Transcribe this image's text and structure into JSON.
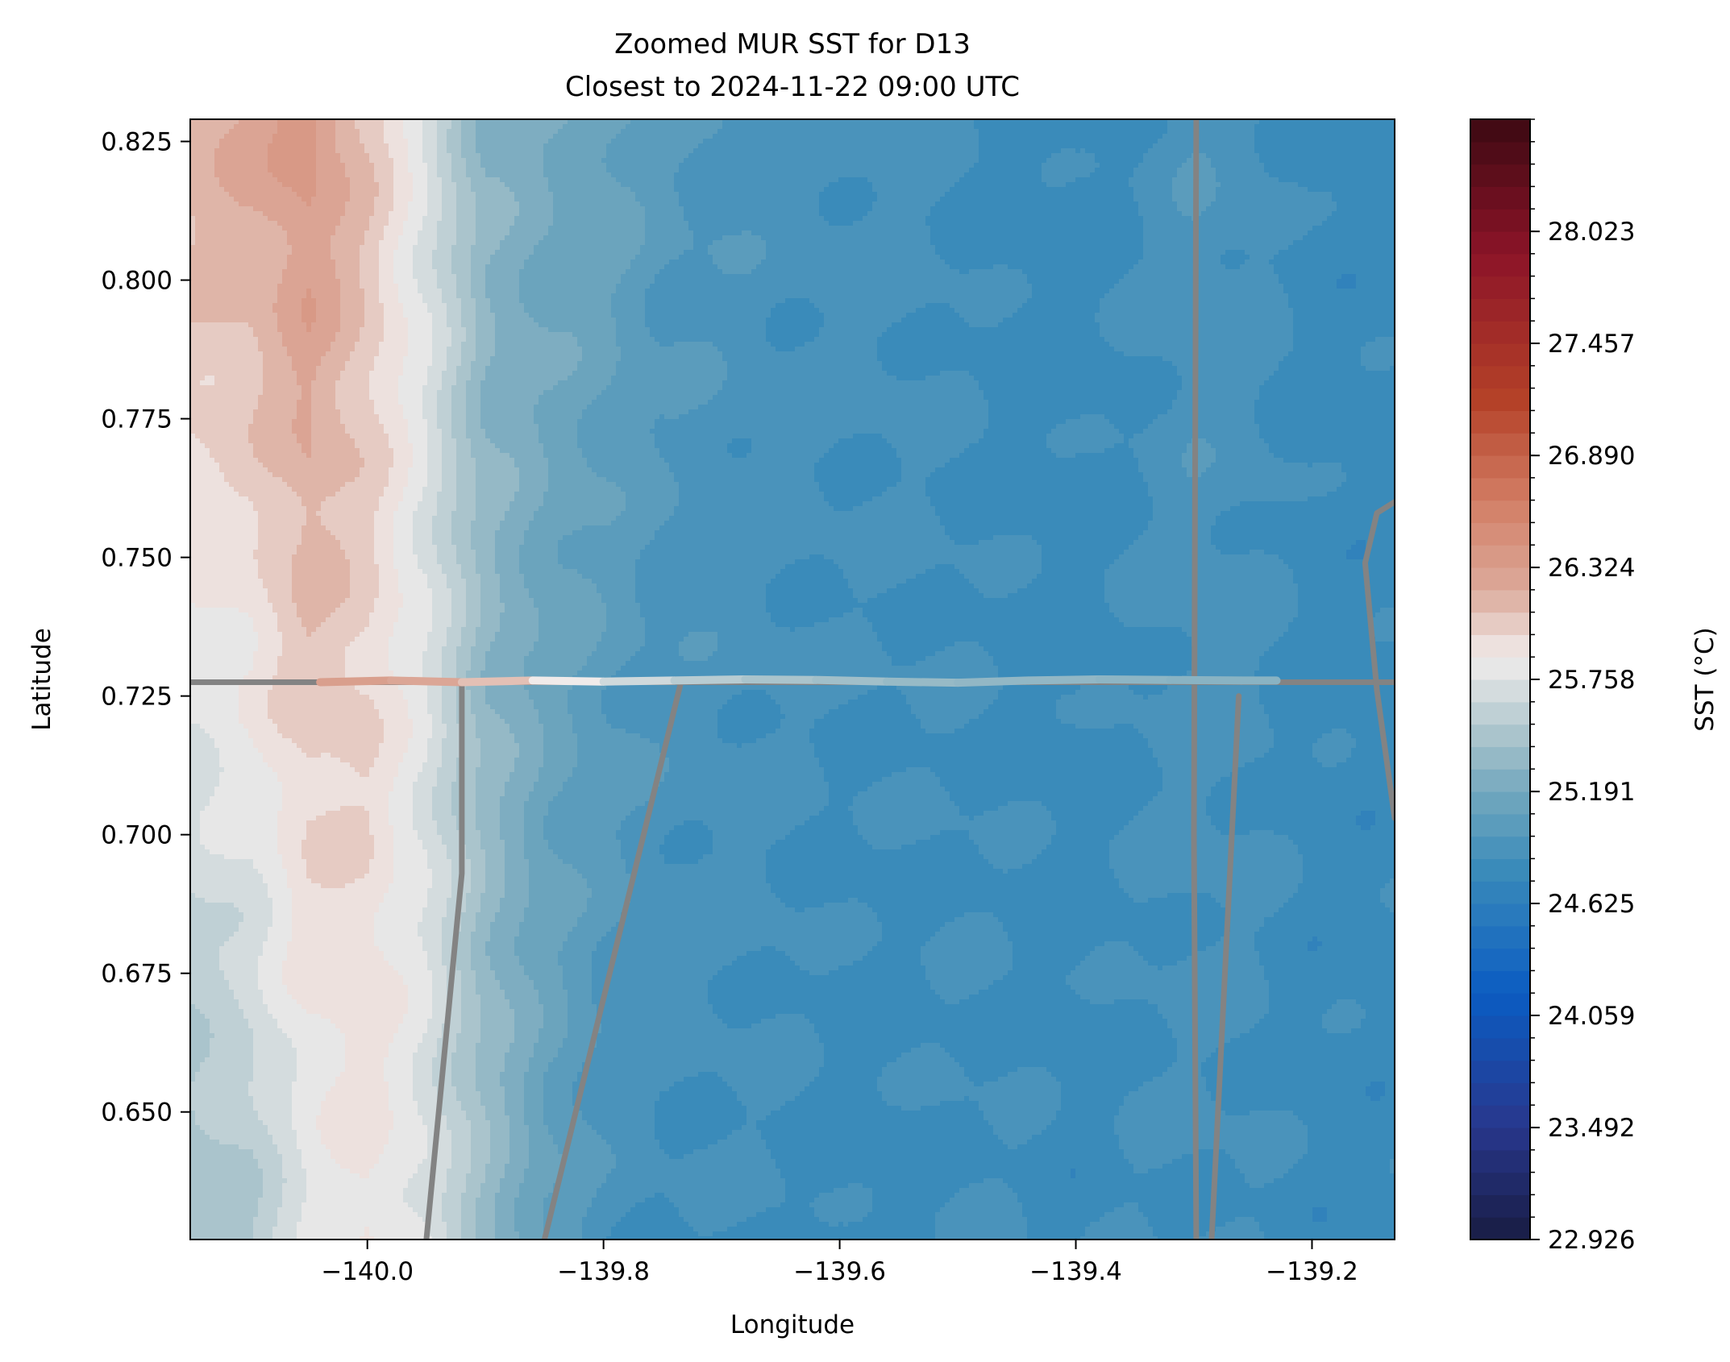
{
  "chart_data": {
    "type": "heatmap",
    "title": "Zoomed MUR SST for D13",
    "subtitle": "Closest to 2024-11-22 09:00 UTC",
    "xlabel": "Longitude",
    "ylabel": "Latitude",
    "xlim": [
      -140.15,
      -139.13
    ],
    "ylim": [
      0.627,
      0.829
    ],
    "x_ticks": [
      -140.0,
      -139.8,
      -139.6,
      -139.4,
      -139.2
    ],
    "x_tick_labels": [
      "−140.0",
      "−139.8",
      "−139.6",
      "−139.4",
      "−139.2"
    ],
    "y_ticks": [
      0.65,
      0.675,
      0.7,
      0.725,
      0.75,
      0.775,
      0.8,
      0.825
    ],
    "y_tick_labels": [
      "0.650",
      "0.675",
      "0.700",
      "0.725",
      "0.750",
      "0.775",
      "0.800",
      "0.825"
    ],
    "colorbar": {
      "label": "SST (°C)",
      "range": [
        22.926,
        28.59
      ],
      "ticks": [
        22.926,
        23.492,
        24.059,
        24.625,
        25.191,
        25.758,
        26.324,
        26.89,
        27.457,
        28.023
      ],
      "tick_labels": [
        "22.926",
        "23.492",
        "24.059",
        "24.625",
        "25.191",
        "25.758",
        "26.324",
        "26.890",
        "27.457",
        "28.023"
      ],
      "levels": 50,
      "colormap": "balance (dark blue → white → dark red)"
    },
    "sst_field_profile": {
      "longitude": [
        -140.15,
        -140.1,
        -140.05,
        -140.0,
        -139.95,
        -139.9,
        -139.85,
        -139.8,
        -139.75,
        -139.7,
        -139.65,
        -139.6,
        -139.55,
        -139.5,
        -139.45,
        -139.4,
        -139.35,
        -139.3,
        -139.25,
        -139.2,
        -139.15
      ],
      "sst_north": [
        26.2,
        26.25,
        26.4,
        26.1,
        25.75,
        25.3,
        25.2,
        25.15,
        25.0,
        24.95,
        24.9,
        24.9,
        24.9,
        24.85,
        24.8,
        24.8,
        24.85,
        24.95,
        24.9,
        24.8,
        24.8
      ],
      "sst_south": [
        25.4,
        25.5,
        25.75,
        25.9,
        25.75,
        25.4,
        25.1,
        24.9,
        24.85,
        24.85,
        24.85,
        24.8,
        24.8,
        24.85,
        24.85,
        24.8,
        24.85,
        24.85,
        24.85,
        24.8,
        24.8
      ]
    },
    "drifter_track": {
      "longitude": [
        -140.04,
        -139.98,
        -139.92,
        -139.86,
        -139.8,
        -139.74,
        -139.68,
        -139.62,
        -139.56,
        -139.5,
        -139.44,
        -139.38,
        -139.32,
        -139.26,
        -139.23
      ],
      "latitude": [
        0.7275,
        0.7278,
        0.7275,
        0.7278,
        0.7276,
        0.7278,
        0.728,
        0.7279,
        0.7276,
        0.7274,
        0.7278,
        0.728,
        0.7279,
        0.7278,
        0.7278
      ],
      "sst": [
        26.35,
        26.3,
        26.2,
        26.0,
        25.75,
        25.6,
        25.5,
        25.45,
        25.4,
        25.35,
        25.35,
        25.35,
        25.3,
        25.3,
        25.3
      ]
    },
    "gray_lines": [
      {
        "longitude": [
          -140.15,
          -139.13
        ],
        "latitude": [
          0.7275,
          0.7275
        ]
      },
      {
        "longitude": [
          -139.95,
          -139.92,
          -139.92
        ],
        "latitude": [
          0.627,
          0.693,
          0.727
        ]
      },
      {
        "longitude": [
          -139.85,
          -139.735
        ],
        "latitude": [
          0.627,
          0.727
        ]
      },
      {
        "longitude": [
          -139.298,
          -139.3,
          -139.298
        ],
        "latitude": [
          0.627,
          0.7,
          0.829
        ]
      },
      {
        "longitude": [
          -139.285,
          -139.262
        ],
        "latitude": [
          0.627,
          0.725
        ]
      },
      {
        "longitude": [
          -139.13,
          -139.145,
          -139.155,
          -139.145,
          -139.13
        ],
        "latitude": [
          0.703,
          0.726,
          0.749,
          0.758,
          0.76
        ]
      }
    ]
  }
}
